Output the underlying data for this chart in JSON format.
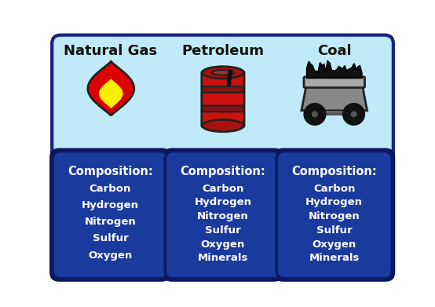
{
  "fig_w": 5.54,
  "fig_h": 3.91,
  "dpi": 100,
  "bg_color": "#ffffff",
  "top_box_fill": "#a8ddf0",
  "top_box_edge": "#1a237e",
  "bottom_box_fill": "#1a3a9e",
  "bottom_box_edge": "#0a1a5e",
  "white": "#ffffff",
  "black": "#111111",
  "titles": [
    "Natural Gas",
    "Petroleum",
    "Coal"
  ],
  "title_color": "#111111",
  "title_fontsize": 13,
  "comp_label": "Composition:",
  "comp_fontsize": 10.5,
  "elem_fontsize": 9.5,
  "natural_gas_elements": [
    "Carbon",
    "Hydrogen",
    "Nitrogen",
    "Sulfur",
    "Oxygen"
  ],
  "petroleum_elements": [
    "Carbon",
    "Hydrogen",
    "Nitrogen",
    "Sulfur",
    "Oxygen",
    "Minerals"
  ],
  "coal_elements": [
    "Carbon",
    "Hydrogen",
    "Nitrogen",
    "Sulfur",
    "Oxygen",
    "Minerals"
  ],
  "flame_red": "#dd0000",
  "flame_yellow": "#ffee00",
  "barrel_red": "#cc1111",
  "barrel_dark": "#881111",
  "cart_gray": "#888888",
  "cart_light": "#aaaaaa",
  "coal_black": "#111111"
}
